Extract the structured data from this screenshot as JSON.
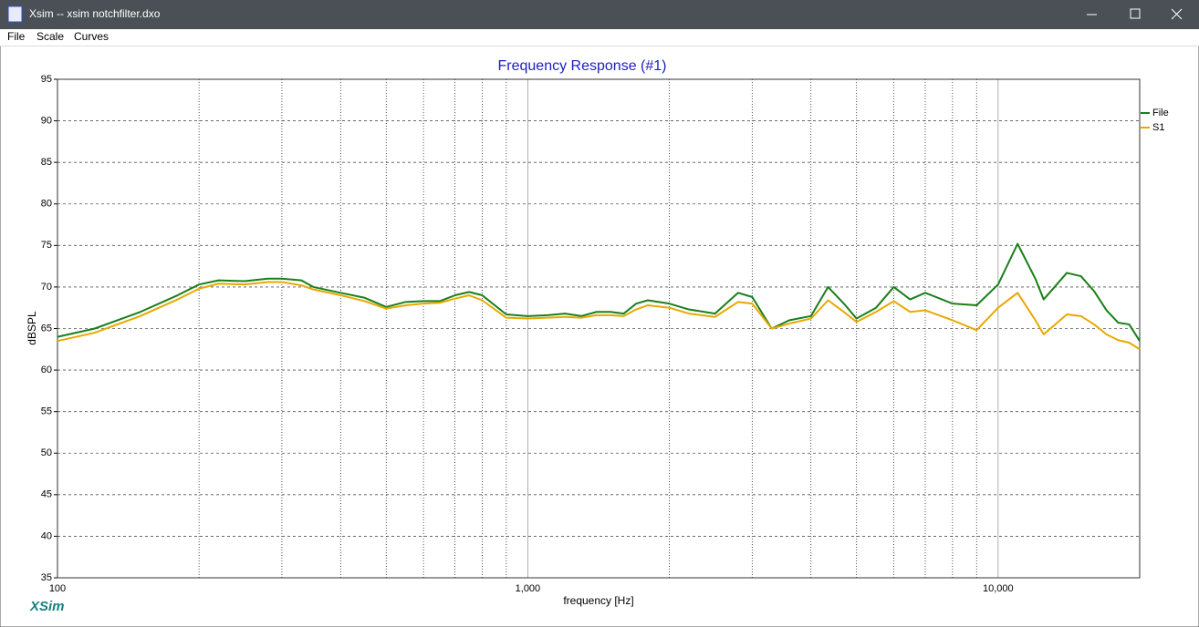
{
  "window": {
    "title": "Xsim -- xsim notchfilter.dxo"
  },
  "menu": [
    "File",
    "Scale",
    "Curves"
  ],
  "brand": "XSim",
  "chart_data": {
    "type": "line",
    "title": "Frequency Response (#1)",
    "x_label": "frequency [Hz]",
    "y_label": "dBSPL",
    "xscale": "log",
    "xlim": [
      100,
      20000
    ],
    "ylim": [
      35,
      95
    ],
    "xticks": [
      100,
      {
        "value": 1000,
        "label": "1,000"
      },
      {
        "value": 10000,
        "label": "10,000"
      }
    ],
    "xgrid": [
      200,
      300,
      400,
      500,
      600,
      700,
      800,
      900,
      2000,
      3000,
      4000,
      5000,
      6000,
      7000,
      8000,
      9000
    ],
    "yticks": [
      35,
      40,
      45,
      50,
      55,
      60,
      65,
      70,
      75,
      80,
      85,
      90,
      95
    ],
    "grid": true,
    "legend": "top-right",
    "x": [
      100,
      120,
      150,
      180,
      200,
      220,
      250,
      280,
      300,
      330,
      350,
      400,
      450,
      500,
      550,
      600,
      650,
      700,
      750,
      800,
      900,
      1000,
      1100,
      1200,
      1300,
      1400,
      1500,
      1600,
      1700,
      1800,
      2000,
      2200,
      2500,
      2800,
      3000,
      3300,
      3600,
      4000,
      4350,
      4700,
      5000,
      5500,
      6000,
      6500,
      7000,
      8000,
      9000,
      10000,
      11000,
      12000,
      12500,
      14000,
      15000,
      16000,
      17000,
      18000,
      19000,
      20000
    ],
    "series": [
      {
        "name": "File",
        "color": "#1a7f1a",
        "values": [
          64,
          65,
          67,
          69,
          70.3,
          70.8,
          70.7,
          71,
          71,
          70.8,
          70,
          69.3,
          68.7,
          67.6,
          68.2,
          68.3,
          68.3,
          69,
          69.4,
          69,
          66.7,
          66.5,
          66.6,
          66.8,
          66.5,
          67,
          67,
          66.8,
          68,
          68.4,
          68,
          67.3,
          66.8,
          69.3,
          68.8,
          65,
          66,
          66.5,
          70,
          68,
          66.2,
          67.5,
          70,
          68.5,
          69.3,
          68,
          67.8,
          70.3,
          75.2,
          71,
          68.5,
          71.7,
          71.3,
          69.5,
          67.2,
          65.7,
          65.5,
          63.5
        ]
      },
      {
        "name": "S1",
        "color": "#e8a800",
        "values": [
          63.5,
          64.5,
          66.5,
          68.5,
          69.8,
          70.4,
          70.3,
          70.6,
          70.6,
          70.2,
          69.7,
          69,
          68.3,
          67.4,
          67.8,
          68,
          68.1,
          68.6,
          69,
          68.4,
          66.3,
          66.2,
          66.3,
          66.4,
          66.3,
          66.6,
          66.6,
          66.5,
          67.3,
          67.8,
          67.5,
          66.8,
          66.4,
          68.2,
          68,
          65,
          65.6,
          66.2,
          68.4,
          67,
          65.8,
          67,
          68.3,
          67,
          67.2,
          66,
          64.8,
          67.5,
          69.3,
          66,
          64.3,
          66.7,
          66.5,
          65.5,
          64.3,
          63.6,
          63.3,
          62.5
        ]
      }
    ]
  }
}
